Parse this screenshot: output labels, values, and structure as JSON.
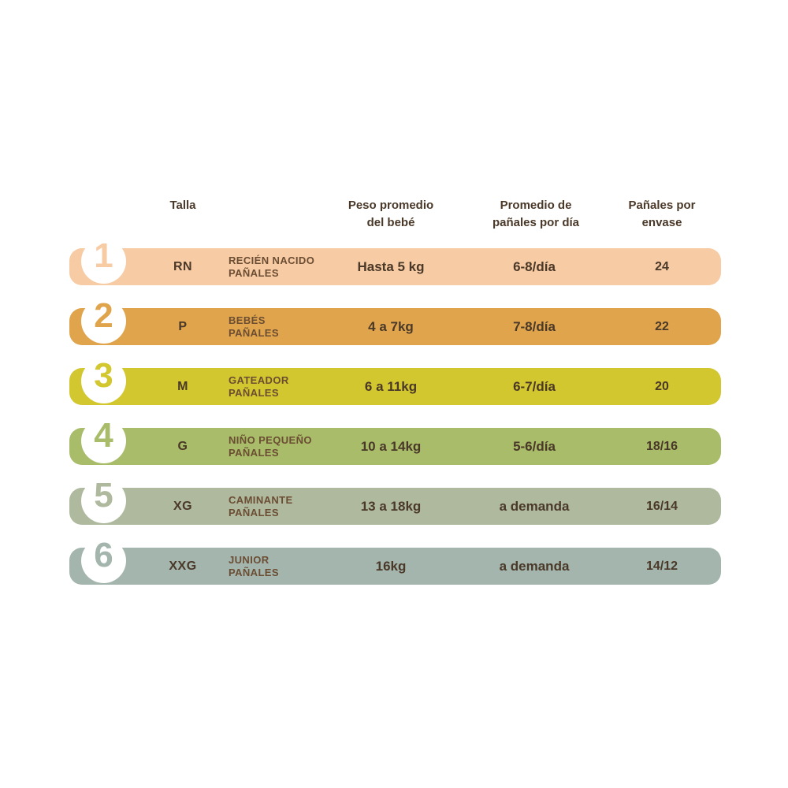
{
  "colors": {
    "background": "#ffffff",
    "text_dark": "#4A3828",
    "label_brown": "#6B4D33"
  },
  "header": {
    "talla": "Talla",
    "peso_line1": "Peso promedio",
    "peso_line2": "del bebé",
    "promedio_line1": "Promedio de",
    "promedio_line2": "pañales por día",
    "envase_line1": "Pañales por",
    "envase_line2": "envase"
  },
  "rows": [
    {
      "number": "1",
      "size": "RN",
      "label_line1": "RECIÉN NACIDO",
      "label_line2": "PAÑALES",
      "weight": "Hasta 5 kg",
      "per_day": "6-8/día",
      "per_pack": "24",
      "color": "#F7CBA3"
    },
    {
      "number": "2",
      "size": "P",
      "label_line1": "BEBÉS",
      "label_line2": "PAÑALES",
      "weight": "4 a 7kg",
      "per_day": "7-8/día",
      "per_pack": "22",
      "color": "#E0A54C"
    },
    {
      "number": "3",
      "size": "M",
      "label_line1": "GATEADOR",
      "label_line2": "PAÑALES",
      "weight": "6 a 11kg",
      "per_day": "6-7/día",
      "per_pack": "20",
      "color": "#D2C72F"
    },
    {
      "number": "4",
      "size": "G",
      "label_line1": "NIÑO PEQUEÑO",
      "label_line2": "PAÑALES",
      "weight": "10 a 14kg",
      "per_day": "5-6/día",
      "per_pack": "18/16",
      "color": "#A8BC69"
    },
    {
      "number": "5",
      "size": "XG",
      "label_line1": "CAMINANTE",
      "label_line2": "PAÑALES",
      "weight": "13 a 18kg",
      "per_day": "a demanda",
      "per_pack": "16/14",
      "color": "#AEB99E"
    },
    {
      "number": "6",
      "size": "XXG",
      "label_line1": "JUNIOR",
      "label_line2": "PAÑALES",
      "weight": "16kg",
      "per_day": "a demanda",
      "per_pack": "14/12",
      "color": "#A3B5AD"
    }
  ],
  "chart_data": {
    "type": "table",
    "columns": [
      "Talla",
      "Peso promedio del bebé",
      "Promedio de pañales por día",
      "Pañales por envase"
    ],
    "rows": [
      [
        "1",
        "RN",
        "RECIÉN NACIDO PAÑALES",
        "Hasta 5 kg",
        "6-8/día",
        "24"
      ],
      [
        "2",
        "P",
        "BEBÉS PAÑALES",
        "4 a 7kg",
        "7-8/día",
        "22"
      ],
      [
        "3",
        "M",
        "GATEADOR PAÑALES",
        "6 a 11kg",
        "6-7/día",
        "20"
      ],
      [
        "4",
        "G",
        "NIÑO PEQUEÑO PAÑALES",
        "10 a 14kg",
        "5-6/día",
        "18/16"
      ],
      [
        "5",
        "XG",
        "CAMINANTE PAÑALES",
        "13 a 18kg",
        "a demanda",
        "16/14"
      ],
      [
        "6",
        "XXG",
        "JUNIOR PAÑALES",
        "16kg",
        "a demanda",
        "14/12"
      ]
    ]
  }
}
